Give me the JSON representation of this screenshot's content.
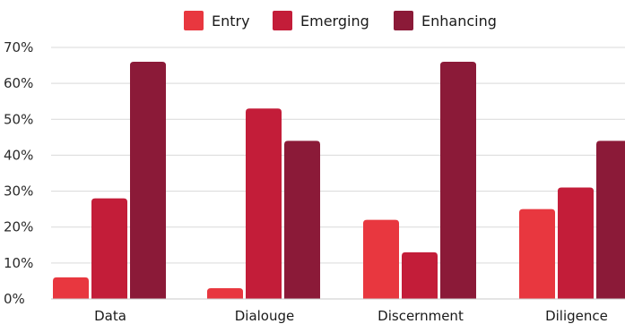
{
  "chart_data": {
    "type": "bar",
    "categories": [
      "Data",
      "Dialouge",
      "Discernment",
      "Diligence"
    ],
    "series": [
      {
        "name": "Entry",
        "values": [
          6,
          3,
          22,
          25
        ]
      },
      {
        "name": "Emerging",
        "values": [
          28,
          53,
          13,
          31
        ]
      },
      {
        "name": "Enhancing",
        "values": [
          66,
          44,
          66,
          44
        ]
      }
    ],
    "colors": [
      "#e8373f",
      "#c31d39",
      "#8b1a38"
    ],
    "ylim": [
      0,
      70
    ],
    "yticks": [
      0,
      10,
      20,
      30,
      40,
      50,
      60,
      70
    ],
    "ytick_labels": [
      "0%",
      "10%",
      "20%",
      "30%",
      "40%",
      "50%",
      "60%",
      "70%"
    ],
    "legend_position": "top-center",
    "grid": true
  }
}
